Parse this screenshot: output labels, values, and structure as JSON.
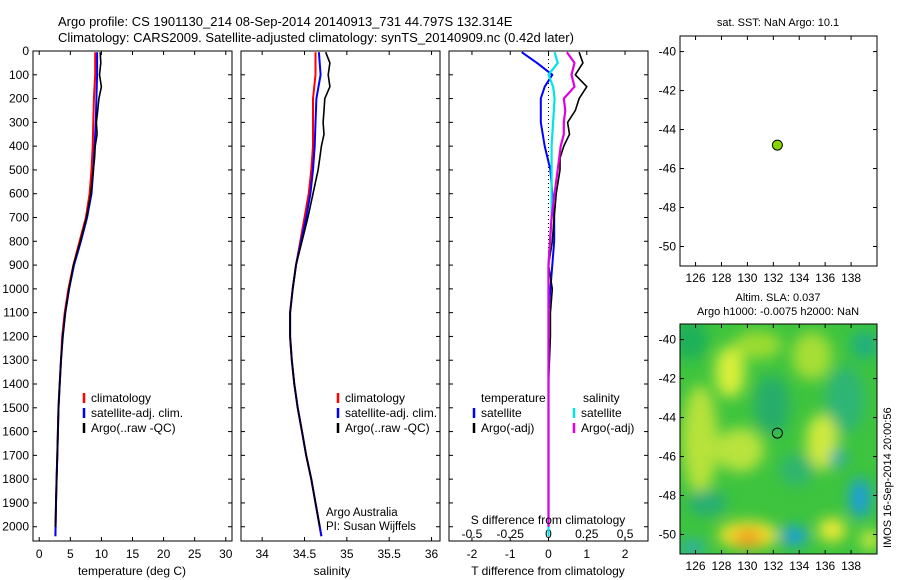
{
  "header": {
    "line1": "Argo profile: CS 1901130_214 08-Sep-2014 20140913_731 44.797S 132.314E",
    "line2": "Climatology: CARS2009. Satellite-adjusted climatology: synTS_20140909.nc (0.42d later)"
  },
  "colors": {
    "climatology": "#ff0000",
    "satellite": "#0000ff",
    "argo": "#000000",
    "sat_diff_sal": "#00e5e5",
    "argo_diff_sal": "#e000e0",
    "dot": "#88d400"
  },
  "chart_data": [
    {
      "id": "temperature",
      "type": "line",
      "xlabel": "temperature (deg C)",
      "ylabel": "",
      "xlim": [
        -1,
        31
      ],
      "ylim": [
        2060,
        0
      ],
      "xticks": [
        0,
        5,
        10,
        15,
        20,
        25,
        30
      ],
      "yticks": [
        0,
        100,
        200,
        300,
        400,
        500,
        600,
        700,
        800,
        900,
        1000,
        1100,
        1200,
        1300,
        1400,
        1500,
        1600,
        1700,
        1800,
        1900,
        2000
      ],
      "legend": [
        "climatology",
        "satellite-adj. clim.",
        "Argo(..raw -QC)"
      ],
      "series": [
        {
          "name": "climatology",
          "depth": [
            5,
            100,
            200,
            300,
            400,
            500,
            600,
            700,
            800,
            900,
            1000,
            1100,
            1200,
            1300,
            1400,
            1500,
            1600,
            1700,
            1800,
            1900,
            2040
          ],
          "values": [
            9.0,
            9.0,
            8.8,
            8.7,
            8.6,
            8.4,
            8.1,
            7.5,
            6.5,
            5.5,
            4.7,
            4.1,
            3.7,
            3.5,
            3.3,
            3.1,
            3.0,
            2.9,
            2.8,
            2.7,
            2.6
          ]
        },
        {
          "name": "satellite-adj. clim.",
          "depth": [
            5,
            100,
            200,
            300,
            400,
            500,
            600,
            700,
            800,
            900,
            1000,
            1100,
            1200,
            1300,
            1400,
            1500,
            1600,
            1700,
            1800,
            1900,
            2040
          ],
          "values": [
            9.3,
            9.3,
            9.2,
            9.1,
            8.9,
            8.7,
            8.4,
            7.7,
            6.7,
            5.6,
            4.8,
            4.2,
            3.8,
            3.5,
            3.3,
            3.1,
            3.0,
            2.9,
            2.8,
            2.7,
            2.6
          ]
        },
        {
          "name": "Argo(..raw -QC)",
          "depth": [
            5,
            50,
            100,
            150,
            200,
            250,
            300,
            350,
            400,
            450,
            500,
            600,
            700,
            800,
            900,
            1000,
            1100,
            1200,
            1300,
            1400,
            1500,
            1600,
            1700,
            1800,
            1900,
            2000
          ],
          "values": [
            9.8,
            9.9,
            9.7,
            10.0,
            9.6,
            9.4,
            9.2,
            9.3,
            9.0,
            8.9,
            8.7,
            8.3,
            7.6,
            6.6,
            5.5,
            4.8,
            4.2,
            3.8,
            3.5,
            3.3,
            3.1,
            3.0,
            2.9,
            2.8,
            2.7,
            2.6
          ]
        }
      ]
    },
    {
      "id": "salinity",
      "type": "line",
      "xlabel": "salinity",
      "xlim": [
        33.75,
        36.1
      ],
      "ylim": [
        2060,
        0
      ],
      "xticks": [
        34,
        34.5,
        35,
        35.5,
        36
      ],
      "legend": [
        "climatology",
        "satellite-adj. clim.",
        "Argo(..raw -QC)"
      ],
      "annotation": [
        "Argo Australia",
        "PI: Susan Wijffels"
      ],
      "series": [
        {
          "name": "climatology",
          "depth": [
            5,
            100,
            200,
            300,
            400,
            500,
            600,
            700,
            800,
            900,
            1000,
            1100,
            1200,
            1300,
            1400,
            1500,
            1600,
            1700,
            1800,
            1900,
            2040
          ],
          "values": [
            34.63,
            34.63,
            34.6,
            34.6,
            34.6,
            34.58,
            34.55,
            34.5,
            34.45,
            34.4,
            34.36,
            34.33,
            34.33,
            34.35,
            34.38,
            34.42,
            34.47,
            34.52,
            34.58,
            34.63,
            34.7
          ]
        },
        {
          "name": "satellite-adj. clim.",
          "depth": [
            5,
            100,
            200,
            300,
            400,
            500,
            600,
            700,
            800,
            900,
            1000,
            1100,
            1200,
            1300,
            1400,
            1500,
            1600,
            1700,
            1800,
            1900,
            2040
          ],
          "values": [
            34.67,
            34.69,
            34.64,
            34.63,
            34.62,
            34.6,
            34.57,
            34.52,
            34.46,
            34.4,
            34.36,
            34.33,
            34.33,
            34.35,
            34.38,
            34.42,
            34.47,
            34.52,
            34.58,
            34.63,
            34.7
          ]
        },
        {
          "name": "Argo(..raw -QC)",
          "depth": [
            5,
            50,
            100,
            150,
            200,
            250,
            300,
            350,
            400,
            450,
            500,
            600,
            700,
            800,
            900,
            1000,
            1100,
            1200,
            1300,
            1400,
            1500,
            1600,
            1700,
            1800,
            1900,
            2000
          ],
          "values": [
            34.75,
            34.8,
            34.78,
            34.8,
            34.74,
            34.73,
            34.72,
            34.73,
            34.7,
            34.68,
            34.66,
            34.6,
            34.54,
            34.47,
            34.4,
            34.36,
            34.33,
            34.33,
            34.35,
            34.38,
            34.42,
            34.47,
            34.52,
            34.58,
            34.63,
            34.68
          ]
        }
      ]
    },
    {
      "id": "differences",
      "type": "line",
      "xlabel": "T difference from climatology",
      "top_label": "S difference from climatology",
      "xlim": [
        -2.6,
        2.6
      ],
      "ylim": [
        2060,
        0
      ],
      "xticks": [
        -2,
        -1,
        0,
        1,
        2
      ],
      "sticks": [
        -0.5,
        -0.25,
        0,
        0.25,
        0.5
      ],
      "legend_titles": [
        "temperature",
        "salinity"
      ],
      "legend": [
        "satellite",
        "Argo(-adj)",
        "satellite",
        "Argo(-adj)"
      ],
      "series": [
        {
          "name": "temperature satellite",
          "depth": [
            5,
            50,
            100,
            150,
            200,
            300,
            400,
            500,
            600,
            700,
            800,
            900,
            1000,
            1100,
            1200,
            1400,
            1600,
            1800,
            2040
          ],
          "values": [
            -0.7,
            -0.3,
            0.1,
            -0.1,
            -0.2,
            -0.2,
            -0.1,
            0.05,
            0.1,
            0.15,
            0.15,
            0.1,
            0.05,
            0.0,
            0.0,
            0.0,
            0.0,
            0.0,
            0.0
          ]
        },
        {
          "name": "temperature Argo(-adj)",
          "depth": [
            5,
            50,
            100,
            150,
            200,
            250,
            300,
            350,
            400,
            450,
            500,
            600,
            700,
            800,
            900,
            1000,
            1100,
            1200,
            1400,
            1600,
            1800,
            2000
          ],
          "values": [
            0.8,
            0.9,
            0.7,
            1.0,
            0.8,
            0.7,
            0.5,
            0.55,
            0.4,
            0.3,
            0.3,
            0.2,
            0.15,
            0.1,
            0.0,
            0.1,
            0.05,
            0.05,
            0.0,
            0.0,
            0.0,
            0.0
          ]
        },
        {
          "name": "salinity satellite",
          "depth": [
            5,
            50,
            100,
            150,
            200,
            300,
            400,
            500,
            600,
            700,
            800,
            900,
            1000,
            1100,
            1200,
            1400,
            1600,
            1800,
            2040
          ],
          "values": [
            0.04,
            0.06,
            0.0,
            0.03,
            0.04,
            0.03,
            0.02,
            0.02,
            0.02,
            0.02,
            0.01,
            0.0,
            0.0,
            0.0,
            0.0,
            0.0,
            0.0,
            0.0,
            0.0
          ]
        },
        {
          "name": "salinity Argo(-adj)",
          "depth": [
            5,
            50,
            100,
            150,
            200,
            250,
            300,
            350,
            400,
            450,
            500,
            600,
            700,
            800,
            900,
            1000,
            1100,
            1200,
            1400,
            1600,
            1800,
            2000
          ],
          "values": [
            0.12,
            0.17,
            0.15,
            0.17,
            0.1,
            0.11,
            0.1,
            0.1,
            0.08,
            0.07,
            0.06,
            0.04,
            0.02,
            0.01,
            0.0,
            0.0,
            0.0,
            0.0,
            0.0,
            0.0,
            0.0,
            0.0
          ]
        }
      ]
    },
    {
      "id": "sst-map",
      "type": "scatter",
      "title": "sat. SST: NaN Argo: 10.1",
      "xlim": [
        124.8,
        140
      ],
      "ylim": [
        -51,
        -39.2
      ],
      "xticks": [
        126,
        128,
        130,
        132,
        134,
        136,
        138
      ],
      "yticks": [
        -40,
        -42,
        -44,
        -46,
        -48,
        -50
      ],
      "point": {
        "lon": 132.314,
        "lat": -44.797
      }
    },
    {
      "id": "sla-map",
      "type": "heatmap",
      "title": [
        "Altim. SLA: 0.037",
        "Argo h1000: -0.0075 h2000: NaN"
      ],
      "side_label": "IMOS 16-Sep-2014 20:00:56",
      "xlim": [
        124.8,
        140
      ],
      "ylim": [
        -51,
        -39.2
      ],
      "xticks": [
        126,
        128,
        130,
        132,
        134,
        136,
        138
      ],
      "yticks": [
        -40,
        -42,
        -44,
        -46,
        -48,
        -50
      ],
      "point": {
        "lon": 132.314,
        "lat": -44.797
      }
    }
  ]
}
